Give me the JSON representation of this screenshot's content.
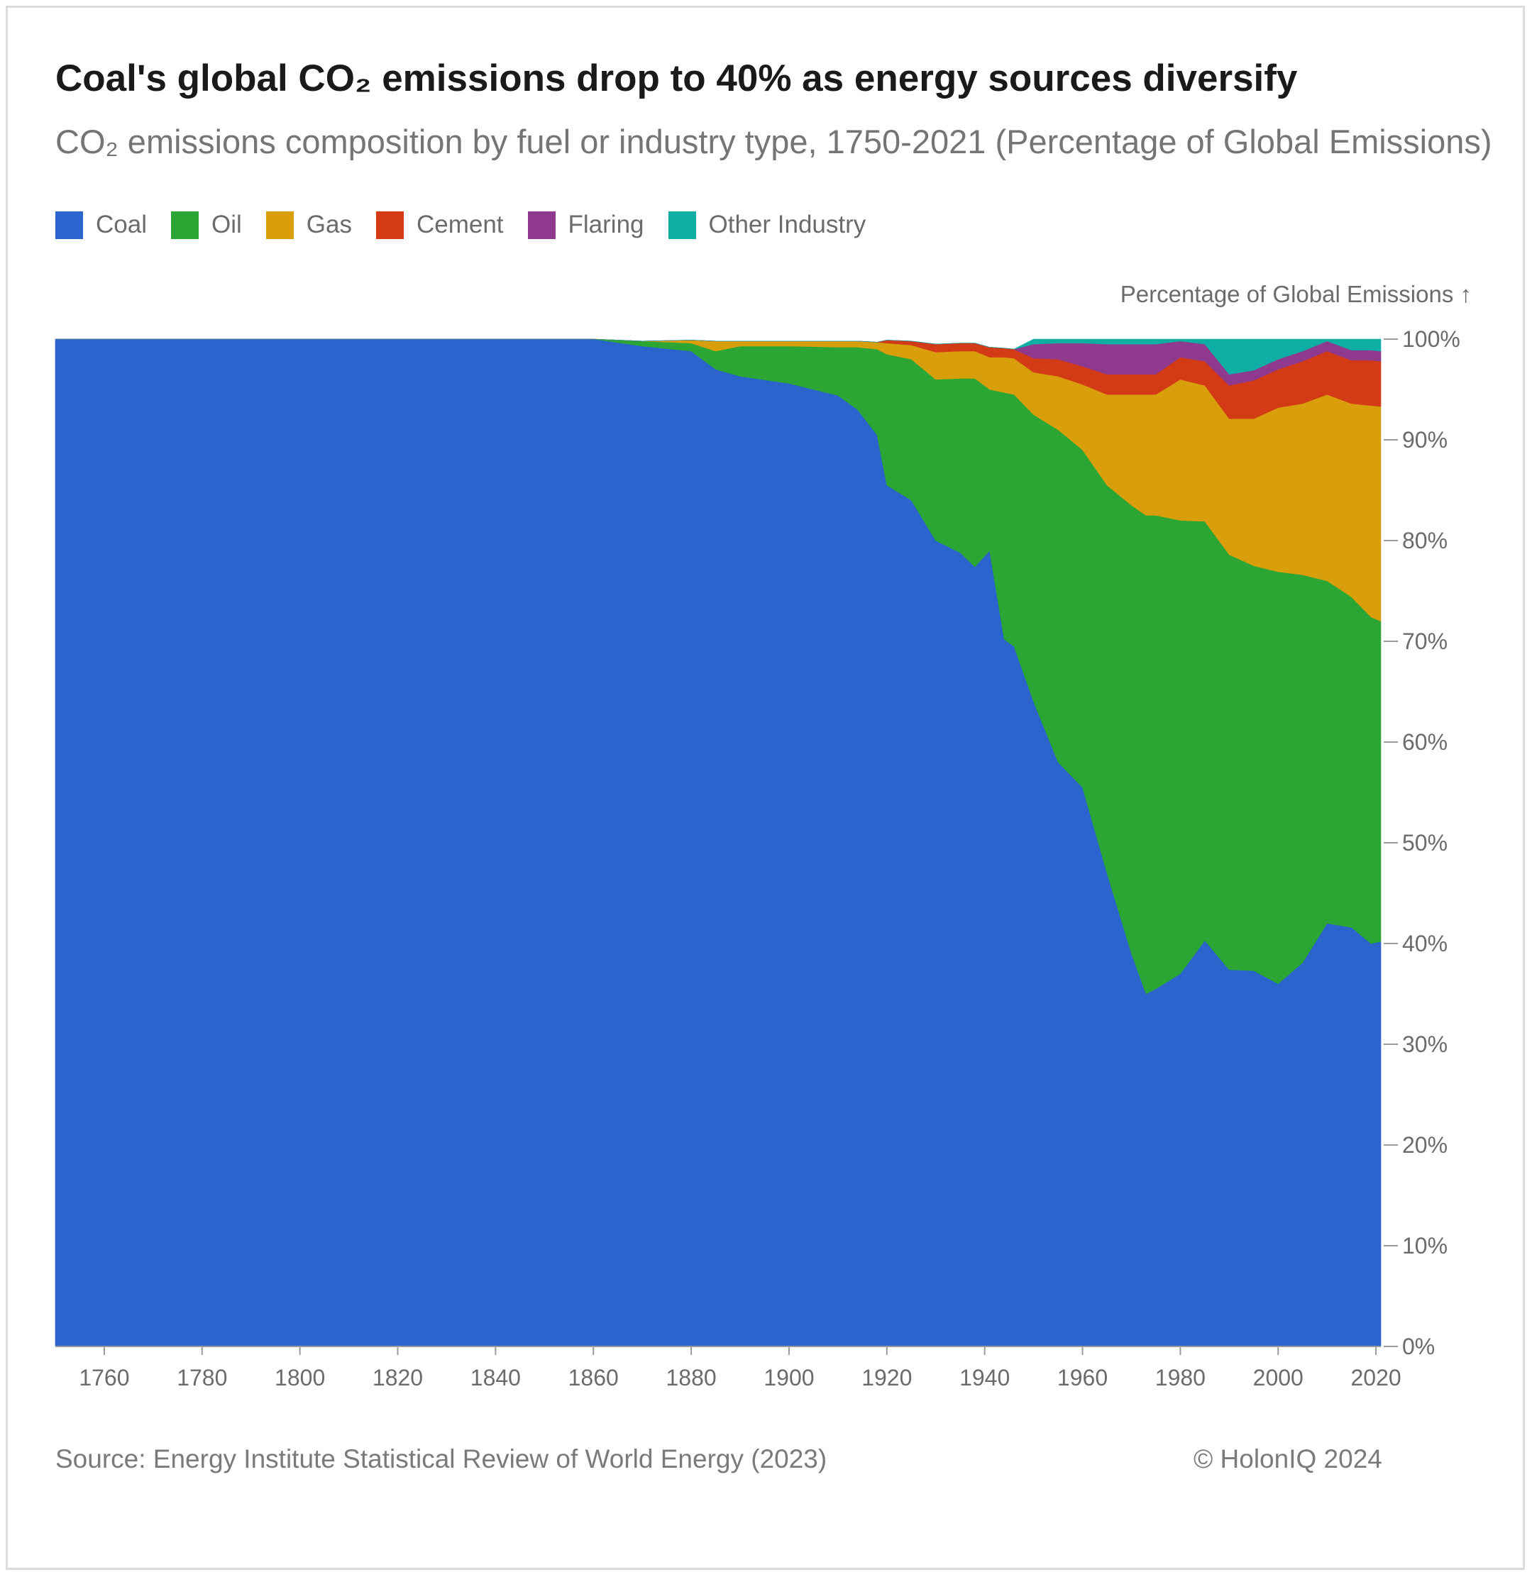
{
  "title": "Coal's global CO₂ emissions drop to 40% as energy sources diversify",
  "subtitle": "CO₂ emissions composition by fuel or industry type, 1750-2021 (Percentage of Global Emissions)",
  "legend": [
    {
      "label": "Coal",
      "color": "#2a64cc"
    },
    {
      "label": "Oil",
      "color": "#2ba634"
    },
    {
      "label": "Gas",
      "color": "#d99e0b"
    },
    {
      "label": "Cement",
      "color": "#d33a16"
    },
    {
      "label": "Flaring",
      "color": "#8f3a8f"
    },
    {
      "label": "Other Industry",
      "color": "#0eaea4"
    }
  ],
  "footer": {
    "source": "Source: Energy Institute Statistical Review of World Energy (2023)",
    "copyright": "© HolonIQ 2024"
  },
  "chart_data": {
    "type": "area",
    "stacked": true,
    "normalized": true,
    "title": "Coal's global CO₂ emissions drop to 40% as energy sources diversify",
    "ylabel": "Percentage of Global Emissions ↑",
    "xlabel": "",
    "xlim": [
      1750,
      2021
    ],
    "ylim": [
      0,
      100
    ],
    "x_ticks": [
      1760,
      1780,
      1800,
      1820,
      1840,
      1860,
      1880,
      1900,
      1920,
      1940,
      1960,
      1980,
      2000,
      2020
    ],
    "y_ticks": [
      0,
      10,
      20,
      30,
      40,
      50,
      60,
      70,
      80,
      90,
      100
    ],
    "y_tick_labels": [
      "0%",
      "10%",
      "20%",
      "30%",
      "40%",
      "50%",
      "60%",
      "70%",
      "80%",
      "90%",
      "100%"
    ],
    "x": [
      1750,
      1800,
      1860,
      1870,
      1880,
      1885,
      1890,
      1900,
      1910,
      1914,
      1918,
      1920,
      1925,
      1930,
      1935,
      1938,
      1941,
      1944,
      1946,
      1950,
      1955,
      1960,
      1965,
      1970,
      1973,
      1975,
      1980,
      1985,
      1990,
      1995,
      2000,
      2005,
      2010,
      2015,
      2019,
      2021
    ],
    "series": [
      {
        "name": "Coal",
        "values": [
          100,
          100,
          100,
          99.3,
          98.8,
          97.0,
          96.3,
          95.6,
          94.4,
          93.0,
          90.5,
          85.5,
          84.0,
          80.0,
          78.8,
          77.4,
          79.0,
          70.2,
          69.5,
          64.0,
          58.0,
          55.5,
          47.0,
          39.0,
          35.0,
          35.5,
          37.0,
          40.3,
          37.4,
          37.3,
          36.0,
          38.1,
          42.0,
          41.6,
          40.0,
          40.2
        ]
      },
      {
        "name": "Oil",
        "values": [
          0,
          0,
          0,
          0.5,
          0.8,
          1.8,
          3.0,
          3.7,
          4.8,
          6.2,
          8.5,
          13.0,
          14.0,
          16.0,
          17.3,
          18.7,
          16.0,
          24.5,
          25.0,
          28.5,
          33.0,
          33.5,
          38.5,
          44.5,
          47.5,
          47.0,
          45.0,
          41.6,
          41.2,
          40.2,
          40.9,
          38.5,
          34.0,
          32.8,
          32.4,
          31.8
        ]
      },
      {
        "name": "Gas",
        "values": [
          0,
          0,
          0,
          0,
          0.3,
          1.0,
          0.5,
          0.5,
          0.6,
          0.6,
          0.7,
          1.1,
          1.4,
          2.7,
          2.7,
          2.7,
          3.2,
          3.5,
          3.6,
          4.2,
          5.3,
          6.5,
          9.0,
          11.0,
          12.0,
          12.0,
          14.0,
          13.5,
          13.5,
          14.6,
          16.3,
          17.0,
          18.5,
          19.2,
          21.0,
          21.3
        ]
      },
      {
        "name": "Cement",
        "values": [
          0,
          0,
          0,
          0,
          0,
          0,
          0,
          0,
          0,
          0,
          0,
          0.3,
          0.4,
          0.8,
          0.8,
          0.8,
          1.0,
          0.9,
          0.9,
          1.4,
          1.7,
          1.8,
          2.0,
          2.0,
          2.0,
          2.0,
          2.2,
          2.4,
          3.3,
          3.8,
          3.8,
          4.2,
          4.3,
          4.3,
          4.5,
          4.5
        ]
      },
      {
        "name": "Flaring",
        "values": [
          0,
          0,
          0,
          0,
          0,
          0,
          0,
          0,
          0,
          0,
          0,
          0,
          0,
          0,
          0,
          0,
          0,
          0,
          0,
          1.4,
          1.6,
          2.3,
          3.0,
          3.0,
          3.0,
          3.0,
          1.6,
          1.7,
          1.1,
          1.0,
          1.0,
          1.0,
          1.0,
          1.0,
          1.0,
          1.0
        ]
      },
      {
        "name": "Other Industry",
        "values": [
          0,
          0,
          0,
          0,
          0,
          0,
          0,
          0,
          0,
          0,
          0,
          0,
          0,
          0,
          0,
          0,
          0,
          0,
          0,
          0.5,
          0.4,
          0.4,
          0.5,
          0.5,
          0.5,
          0.5,
          0.2,
          0.5,
          3.5,
          3.1,
          2.0,
          1.2,
          0.2,
          1.1,
          1.1,
          1.2
        ]
      }
    ]
  }
}
